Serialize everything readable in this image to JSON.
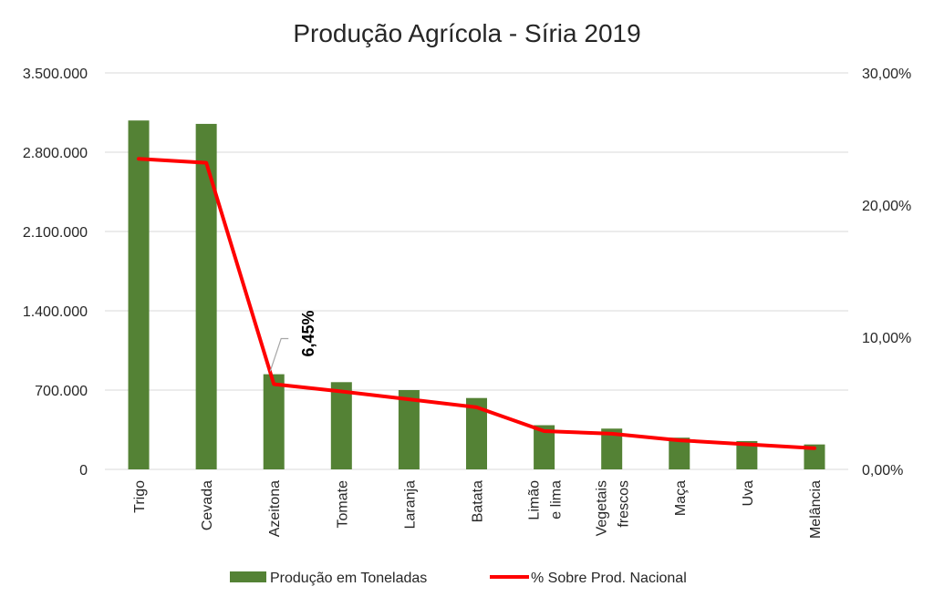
{
  "chart_data": {
    "type": "bar+line",
    "title": "Produção Agrícola - Síria 2019",
    "categories": [
      [
        "Trigo"
      ],
      [
        "Cevada"
      ],
      [
        "Azeitona"
      ],
      [
        "Tomate"
      ],
      [
        "Laranja"
      ],
      [
        "Batata"
      ],
      [
        "Limão",
        "e lima"
      ],
      [
        "Vegetais",
        "frescos"
      ],
      [
        "Maça"
      ],
      [
        "Uva"
      ],
      [
        "Melância"
      ]
    ],
    "series": [
      {
        "name": "Produção em Toneladas",
        "type": "bar",
        "axis": "left",
        "values": [
          3080000,
          3050000,
          840000,
          770000,
          700000,
          630000,
          390000,
          360000,
          280000,
          250000,
          220000
        ]
      },
      {
        "name": "% Sobre Prod. Nacional",
        "type": "line",
        "axis": "right",
        "values": [
          23.5,
          23.2,
          6.45,
          5.9,
          5.3,
          4.7,
          2.9,
          2.7,
          2.2,
          1.9,
          1.6
        ]
      }
    ],
    "left_axis": {
      "min": 0,
      "max": 3500000,
      "ticks": [
        0,
        700000,
        1400000,
        2100000,
        2800000,
        3500000
      ],
      "tick_labels": [
        "0",
        "700.000",
        "1.400.000",
        "2.100.000",
        "2.800.000",
        "3.500.000"
      ]
    },
    "right_axis": {
      "min": 0,
      "max": 30,
      "ticks": [
        0,
        10,
        20,
        30
      ],
      "tick_labels": [
        "0,00%",
        "10,00%",
        "20,00%",
        "30,00%"
      ]
    },
    "annotation": {
      "series": 1,
      "index": 2,
      "label": "6,45%"
    },
    "colors": {
      "bar": "#548235",
      "line": "#ff0000",
      "grid": "#d9d9d9"
    },
    "grid": true,
    "legend_position": "bottom"
  }
}
